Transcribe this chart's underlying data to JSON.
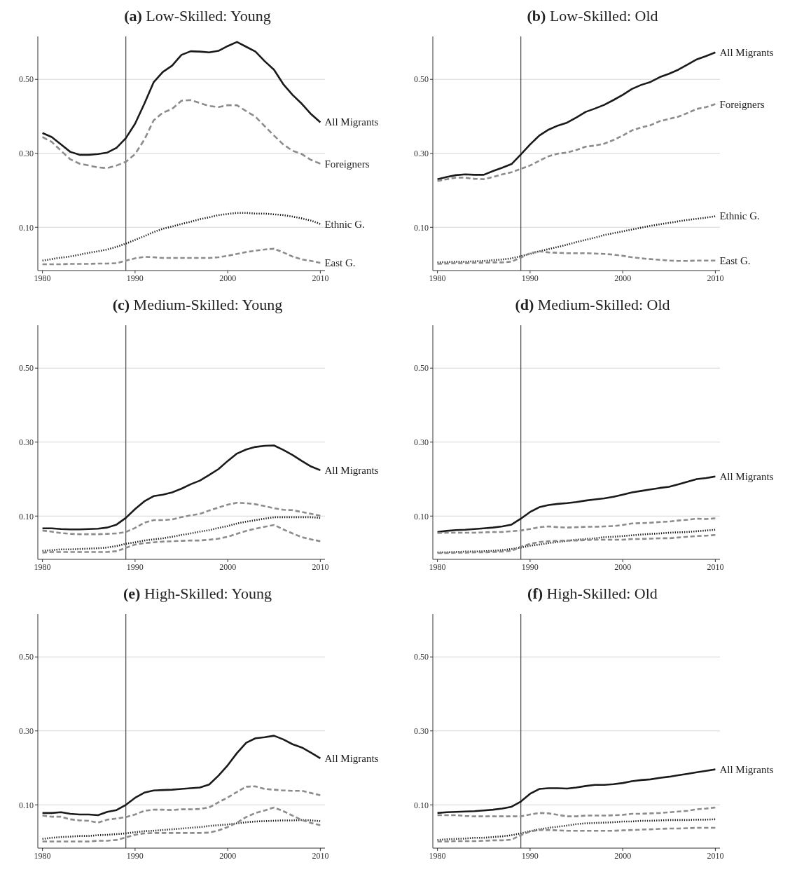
{
  "chart_data": [
    {
      "type": "line",
      "title": "(a) Low-Skilled: Young",
      "x": [
        1980,
        1981,
        1982,
        1983,
        1984,
        1985,
        1986,
        1987,
        1988,
        1989,
        1990,
        1991,
        1992,
        1993,
        1994,
        1995,
        1996,
        1997,
        1998,
        1999,
        2000,
        2001,
        2002,
        2003,
        2004,
        2005,
        2006,
        2007,
        2008,
        2009,
        2010
      ],
      "xlim": [
        1979.5,
        2010.5
      ],
      "xticks": [
        1980,
        1990,
        2000,
        2010
      ],
      "ylim": [
        -0.017,
        0.616
      ],
      "yticks": [
        {
          "value": 0.1,
          "label": "0.10"
        },
        {
          "value": 0.3,
          "label": "0.30"
        },
        {
          "value": 0.5,
          "label": "0.50"
        }
      ],
      "grid": "y",
      "ref_lines": [
        {
          "axis": "x",
          "value": 1989,
          "color": "#555555"
        }
      ],
      "series": [
        {
          "name": "All Migrants",
          "color": "#1a1a1a",
          "line_style": "solid",
          "values": [
            0.355,
            0.344,
            0.324,
            0.304,
            0.296,
            0.296,
            0.298,
            0.302,
            0.315,
            0.341,
            0.38,
            0.434,
            0.492,
            0.52,
            0.537,
            0.566,
            0.576,
            0.575,
            0.573,
            0.577,
            0.59,
            0.601,
            0.588,
            0.575,
            0.549,
            0.526,
            0.487,
            0.458,
            0.434,
            0.406,
            0.384
          ]
        },
        {
          "name": "Foreigners",
          "color": "#8c8c8c",
          "line_style": "dashed",
          "values": [
            0.344,
            0.331,
            0.307,
            0.284,
            0.272,
            0.267,
            0.262,
            0.26,
            0.267,
            0.277,
            0.298,
            0.337,
            0.389,
            0.41,
            0.42,
            0.442,
            0.444,
            0.436,
            0.428,
            0.425,
            0.43,
            0.43,
            0.414,
            0.399,
            0.373,
            0.348,
            0.324,
            0.307,
            0.298,
            0.282,
            0.272
          ]
        },
        {
          "name": "Ethnic G.",
          "color": "#1a1a1a",
          "line_style": "dotted",
          "values": [
            0.01,
            0.014,
            0.018,
            0.021,
            0.026,
            0.031,
            0.035,
            0.04,
            0.047,
            0.056,
            0.066,
            0.076,
            0.087,
            0.096,
            0.102,
            0.109,
            0.115,
            0.122,
            0.127,
            0.133,
            0.136,
            0.139,
            0.139,
            0.137,
            0.137,
            0.135,
            0.133,
            0.129,
            0.124,
            0.118,
            0.109
          ]
        },
        {
          "name": "East G.",
          "color": "#8c8c8c",
          "line_style": "dashed",
          "values": [
            0.0,
            0.0,
            0.0,
            0.001,
            0.001,
            0.001,
            0.002,
            0.002,
            0.003,
            0.01,
            0.016,
            0.02,
            0.019,
            0.017,
            0.017,
            0.017,
            0.017,
            0.017,
            0.017,
            0.019,
            0.023,
            0.028,
            0.033,
            0.037,
            0.04,
            0.042,
            0.032,
            0.021,
            0.013,
            0.009,
            0.004
          ]
        }
      ]
    },
    {
      "type": "line",
      "title": "(b) Low-Skilled: Old",
      "x": [
        1980,
        1981,
        1982,
        1983,
        1984,
        1985,
        1986,
        1987,
        1988,
        1989,
        1990,
        1991,
        1992,
        1993,
        1994,
        1995,
        1996,
        1997,
        1998,
        1999,
        2000,
        2001,
        2002,
        2003,
        2004,
        2005,
        2006,
        2007,
        2008,
        2009,
        2010
      ],
      "xlim": [
        1979.5,
        2010.5
      ],
      "xticks": [
        1980,
        1990,
        2000,
        2010
      ],
      "ylim": [
        -0.017,
        0.616
      ],
      "yticks": [
        {
          "value": 0.1,
          "label": "0.10"
        },
        {
          "value": 0.3,
          "label": "0.30"
        },
        {
          "value": 0.5,
          "label": "0.50"
        }
      ],
      "grid": "y",
      "ref_lines": [
        {
          "axis": "x",
          "value": 1989,
          "color": "#555555"
        }
      ],
      "series": [
        {
          "name": "All Migrants",
          "color": "#1a1a1a",
          "line_style": "solid",
          "values": [
            0.23,
            0.236,
            0.241,
            0.243,
            0.242,
            0.242,
            0.252,
            0.261,
            0.271,
            0.297,
            0.324,
            0.348,
            0.364,
            0.375,
            0.383,
            0.397,
            0.412,
            0.421,
            0.431,
            0.444,
            0.458,
            0.474,
            0.485,
            0.493,
            0.506,
            0.515,
            0.526,
            0.54,
            0.554,
            0.563,
            0.573
          ]
        },
        {
          "name": "Foreigners",
          "color": "#8c8c8c",
          "line_style": "dashed",
          "values": [
            0.225,
            0.23,
            0.234,
            0.234,
            0.231,
            0.23,
            0.236,
            0.243,
            0.249,
            0.258,
            0.267,
            0.28,
            0.292,
            0.299,
            0.302,
            0.309,
            0.318,
            0.321,
            0.326,
            0.336,
            0.348,
            0.362,
            0.37,
            0.376,
            0.387,
            0.393,
            0.399,
            0.409,
            0.42,
            0.425,
            0.433
          ]
        },
        {
          "name": "Ethnic G.",
          "color": "#1a1a1a",
          "line_style": "dotted",
          "values": [
            0.005,
            0.006,
            0.007,
            0.007,
            0.008,
            0.009,
            0.011,
            0.013,
            0.016,
            0.022,
            0.028,
            0.035,
            0.041,
            0.047,
            0.053,
            0.06,
            0.066,
            0.072,
            0.079,
            0.084,
            0.089,
            0.094,
            0.099,
            0.104,
            0.108,
            0.112,
            0.116,
            0.12,
            0.123,
            0.126,
            0.13
          ]
        },
        {
          "name": "East G.",
          "color": "#8c8c8c",
          "line_style": "dashed",
          "values": [
            0.001,
            0.002,
            0.003,
            0.003,
            0.004,
            0.004,
            0.005,
            0.005,
            0.007,
            0.018,
            0.03,
            0.035,
            0.032,
            0.031,
            0.03,
            0.03,
            0.03,
            0.029,
            0.028,
            0.026,
            0.023,
            0.019,
            0.016,
            0.014,
            0.012,
            0.01,
            0.009,
            0.009,
            0.01,
            0.01,
            0.01
          ]
        }
      ]
    },
    {
      "type": "line",
      "title": "(c) Medium-Skilled: Young",
      "x": [
        1980,
        1981,
        1982,
        1983,
        1984,
        1985,
        1986,
        1987,
        1988,
        1989,
        1990,
        1991,
        1992,
        1993,
        1994,
        1995,
        1996,
        1997,
        1998,
        1999,
        2000,
        2001,
        2002,
        2003,
        2004,
        2005,
        2006,
        2007,
        2008,
        2009,
        2010
      ],
      "xlim": [
        1979.5,
        2010.5
      ],
      "xticks": [
        1980,
        1990,
        2000,
        2010
      ],
      "ylim": [
        -0.017,
        0.616
      ],
      "yticks": [
        {
          "value": 0.1,
          "label": "0.10"
        },
        {
          "value": 0.3,
          "label": "0.30"
        },
        {
          "value": 0.5,
          "label": "0.50"
        }
      ],
      "grid": "y",
      "ref_lines": [
        {
          "axis": "x",
          "value": 1989,
          "color": "#555555"
        }
      ],
      "series": [
        {
          "name": "All Migrants",
          "color": "#1a1a1a",
          "line_style": "solid",
          "values": [
            0.067,
            0.067,
            0.065,
            0.064,
            0.064,
            0.065,
            0.066,
            0.069,
            0.077,
            0.095,
            0.119,
            0.14,
            0.154,
            0.158,
            0.164,
            0.174,
            0.186,
            0.196,
            0.211,
            0.227,
            0.249,
            0.269,
            0.28,
            0.287,
            0.29,
            0.291,
            0.279,
            0.265,
            0.249,
            0.234,
            0.224
          ]
        },
        {
          "color": "#8c8c8c",
          "line_style": "dashed",
          "values": [
            0.061,
            0.058,
            0.054,
            0.052,
            0.051,
            0.051,
            0.051,
            0.052,
            0.053,
            0.057,
            0.068,
            0.082,
            0.089,
            0.089,
            0.091,
            0.097,
            0.102,
            0.106,
            0.115,
            0.123,
            0.131,
            0.136,
            0.135,
            0.132,
            0.127,
            0.121,
            0.117,
            0.116,
            0.111,
            0.106,
            0.101
          ]
        },
        {
          "color": "#1a1a1a",
          "line_style": "dotted",
          "values": [
            0.006,
            0.008,
            0.01,
            0.01,
            0.011,
            0.012,
            0.013,
            0.015,
            0.019,
            0.025,
            0.029,
            0.034,
            0.037,
            0.04,
            0.044,
            0.049,
            0.053,
            0.058,
            0.062,
            0.068,
            0.073,
            0.08,
            0.085,
            0.089,
            0.093,
            0.097,
            0.097,
            0.097,
            0.097,
            0.097,
            0.095
          ]
        },
        {
          "color": "#8c8c8c",
          "line_style": "dashed",
          "values": [
            0.001,
            0.003,
            0.003,
            0.003,
            0.003,
            0.003,
            0.003,
            0.003,
            0.005,
            0.014,
            0.023,
            0.027,
            0.029,
            0.031,
            0.032,
            0.033,
            0.034,
            0.034,
            0.036,
            0.039,
            0.044,
            0.052,
            0.06,
            0.066,
            0.071,
            0.076,
            0.064,
            0.053,
            0.043,
            0.037,
            0.032
          ]
        }
      ]
    },
    {
      "type": "line",
      "title": "(d) Medium-Skilled: Old",
      "x": [
        1980,
        1981,
        1982,
        1983,
        1984,
        1985,
        1986,
        1987,
        1988,
        1989,
        1990,
        1991,
        1992,
        1993,
        1994,
        1995,
        1996,
        1997,
        1998,
        1999,
        2000,
        2001,
        2002,
        2003,
        2004,
        2005,
        2006,
        2007,
        2008,
        2009,
        2010
      ],
      "xlim": [
        1979.5,
        2010.5
      ],
      "xticks": [
        1980,
        1990,
        2000,
        2010
      ],
      "ylim": [
        -0.017,
        0.616
      ],
      "yticks": [
        {
          "value": 0.1,
          "label": "0.10"
        },
        {
          "value": 0.3,
          "label": "0.30"
        },
        {
          "value": 0.5,
          "label": "0.50"
        }
      ],
      "grid": "y",
      "ref_lines": [
        {
          "axis": "x",
          "value": 1989,
          "color": "#555555"
        }
      ],
      "series": [
        {
          "name": "All Migrants",
          "color": "#1a1a1a",
          "line_style": "solid",
          "values": [
            0.057,
            0.06,
            0.062,
            0.063,
            0.065,
            0.067,
            0.069,
            0.072,
            0.077,
            0.093,
            0.111,
            0.124,
            0.13,
            0.133,
            0.135,
            0.138,
            0.142,
            0.145,
            0.148,
            0.152,
            0.158,
            0.164,
            0.168,
            0.172,
            0.176,
            0.179,
            0.186,
            0.193,
            0.2,
            0.203,
            0.207
          ]
        },
        {
          "color": "#8c8c8c",
          "line_style": "dashed",
          "values": [
            0.054,
            0.055,
            0.055,
            0.055,
            0.055,
            0.056,
            0.057,
            0.057,
            0.059,
            0.061,
            0.065,
            0.07,
            0.072,
            0.07,
            0.069,
            0.07,
            0.071,
            0.071,
            0.072,
            0.073,
            0.076,
            0.08,
            0.081,
            0.082,
            0.084,
            0.085,
            0.088,
            0.09,
            0.093,
            0.092,
            0.094
          ]
        },
        {
          "color": "#1a1a1a",
          "line_style": "dotted",
          "values": [
            0.002,
            0.002,
            0.003,
            0.004,
            0.004,
            0.005,
            0.006,
            0.008,
            0.011,
            0.015,
            0.02,
            0.023,
            0.027,
            0.03,
            0.033,
            0.036,
            0.038,
            0.04,
            0.043,
            0.044,
            0.046,
            0.048,
            0.05,
            0.052,
            0.053,
            0.055,
            0.056,
            0.057,
            0.059,
            0.061,
            0.063
          ]
        },
        {
          "color": "#8c8c8c",
          "line_style": "dashed",
          "values": [
            0.0,
            0.0,
            0.001,
            0.001,
            0.002,
            0.002,
            0.003,
            0.004,
            0.006,
            0.017,
            0.025,
            0.03,
            0.032,
            0.033,
            0.034,
            0.034,
            0.035,
            0.036,
            0.036,
            0.036,
            0.036,
            0.038,
            0.038,
            0.039,
            0.04,
            0.04,
            0.042,
            0.044,
            0.046,
            0.047,
            0.049
          ]
        }
      ]
    },
    {
      "type": "line",
      "title": "(e) High-Skilled: Young",
      "x": [
        1980,
        1981,
        1982,
        1983,
        1984,
        1985,
        1986,
        1987,
        1988,
        1989,
        1990,
        1991,
        1992,
        1993,
        1994,
        1995,
        1996,
        1997,
        1998,
        1999,
        2000,
        2001,
        2002,
        2003,
        2004,
        2005,
        2006,
        2007,
        2008,
        2009,
        2010
      ],
      "xlim": [
        1979.5,
        2010.5
      ],
      "xticks": [
        1980,
        1990,
        2000,
        2010
      ],
      "ylim": [
        -0.017,
        0.616
      ],
      "yticks": [
        {
          "value": 0.1,
          "label": "0.10"
        },
        {
          "value": 0.3,
          "label": "0.30"
        },
        {
          "value": 0.5,
          "label": "0.50"
        }
      ],
      "grid": "y",
      "ref_lines": [
        {
          "axis": "x",
          "value": 1989,
          "color": "#555555"
        }
      ],
      "series": [
        {
          "name": "All Migrants",
          "color": "#1a1a1a",
          "line_style": "solid",
          "values": [
            0.078,
            0.078,
            0.08,
            0.076,
            0.074,
            0.074,
            0.072,
            0.081,
            0.086,
            0.1,
            0.119,
            0.133,
            0.139,
            0.14,
            0.141,
            0.143,
            0.145,
            0.147,
            0.155,
            0.179,
            0.207,
            0.24,
            0.268,
            0.28,
            0.283,
            0.287,
            0.277,
            0.264,
            0.255,
            0.241,
            0.226
          ]
        },
        {
          "color": "#8c8c8c",
          "line_style": "dashed",
          "values": [
            0.071,
            0.068,
            0.068,
            0.061,
            0.058,
            0.057,
            0.052,
            0.06,
            0.063,
            0.067,
            0.074,
            0.084,
            0.087,
            0.087,
            0.086,
            0.088,
            0.088,
            0.089,
            0.093,
            0.107,
            0.12,
            0.135,
            0.149,
            0.15,
            0.143,
            0.141,
            0.139,
            0.138,
            0.138,
            0.132,
            0.126
          ]
        },
        {
          "color": "#1a1a1a",
          "line_style": "dotted",
          "values": [
            0.008,
            0.011,
            0.013,
            0.014,
            0.016,
            0.016,
            0.018,
            0.019,
            0.021,
            0.023,
            0.026,
            0.029,
            0.03,
            0.032,
            0.034,
            0.036,
            0.038,
            0.04,
            0.043,
            0.045,
            0.047,
            0.05,
            0.053,
            0.055,
            0.056,
            0.057,
            0.058,
            0.058,
            0.059,
            0.058,
            0.056
          ]
        },
        {
          "color": "#8c8c8c",
          "line_style": "dashed",
          "values": [
            0.001,
            0.001,
            0.001,
            0.001,
            0.001,
            0.001,
            0.003,
            0.003,
            0.005,
            0.012,
            0.019,
            0.023,
            0.024,
            0.024,
            0.024,
            0.024,
            0.024,
            0.024,
            0.025,
            0.031,
            0.04,
            0.052,
            0.067,
            0.078,
            0.085,
            0.093,
            0.083,
            0.071,
            0.059,
            0.051,
            0.045
          ]
        }
      ]
    },
    {
      "type": "line",
      "title": "(f) High-Skilled: Old",
      "x": [
        1980,
        1981,
        1982,
        1983,
        1984,
        1985,
        1986,
        1987,
        1988,
        1989,
        1990,
        1991,
        1992,
        1993,
        1994,
        1995,
        1996,
        1997,
        1998,
        1999,
        2000,
        2001,
        2002,
        2003,
        2004,
        2005,
        2006,
        2007,
        2008,
        2009,
        2010
      ],
      "xlim": [
        1979.5,
        2010.5
      ],
      "xticks": [
        1980,
        1990,
        2000,
        2010
      ],
      "ylim": [
        -0.017,
        0.616
      ],
      "yticks": [
        {
          "value": 0.1,
          "label": "0.10"
        },
        {
          "value": 0.3,
          "label": "0.30"
        },
        {
          "value": 0.5,
          "label": "0.50"
        }
      ],
      "grid": "y",
      "ref_lines": [
        {
          "axis": "x",
          "value": 1989,
          "color": "#555555"
        }
      ],
      "series": [
        {
          "name": "All Migrants",
          "color": "#1a1a1a",
          "line_style": "solid",
          "values": [
            0.078,
            0.08,
            0.081,
            0.082,
            0.083,
            0.085,
            0.087,
            0.09,
            0.095,
            0.109,
            0.13,
            0.143,
            0.145,
            0.145,
            0.144,
            0.147,
            0.151,
            0.154,
            0.154,
            0.156,
            0.159,
            0.164,
            0.167,
            0.169,
            0.173,
            0.176,
            0.18,
            0.184,
            0.188,
            0.192,
            0.196
          ]
        },
        {
          "color": "#8c8c8c",
          "line_style": "dashed",
          "values": [
            0.072,
            0.072,
            0.072,
            0.07,
            0.069,
            0.069,
            0.069,
            0.069,
            0.069,
            0.069,
            0.074,
            0.078,
            0.077,
            0.073,
            0.069,
            0.069,
            0.071,
            0.071,
            0.071,
            0.072,
            0.073,
            0.076,
            0.076,
            0.077,
            0.078,
            0.08,
            0.082,
            0.084,
            0.088,
            0.09,
            0.093
          ]
        },
        {
          "color": "#1a1a1a",
          "line_style": "dotted",
          "values": [
            0.005,
            0.007,
            0.008,
            0.009,
            0.011,
            0.011,
            0.013,
            0.015,
            0.018,
            0.023,
            0.029,
            0.034,
            0.038,
            0.041,
            0.044,
            0.048,
            0.05,
            0.051,
            0.052,
            0.053,
            0.055,
            0.055,
            0.057,
            0.057,
            0.058,
            0.059,
            0.059,
            0.059,
            0.06,
            0.06,
            0.061
          ]
        },
        {
          "color": "#8c8c8c",
          "line_style": "dashed",
          "values": [
            0.001,
            0.001,
            0.002,
            0.002,
            0.002,
            0.003,
            0.004,
            0.004,
            0.006,
            0.018,
            0.028,
            0.032,
            0.032,
            0.031,
            0.03,
            0.03,
            0.03,
            0.03,
            0.03,
            0.03,
            0.031,
            0.032,
            0.033,
            0.034,
            0.035,
            0.036,
            0.036,
            0.037,
            0.038,
            0.038,
            0.038
          ]
        }
      ]
    }
  ]
}
